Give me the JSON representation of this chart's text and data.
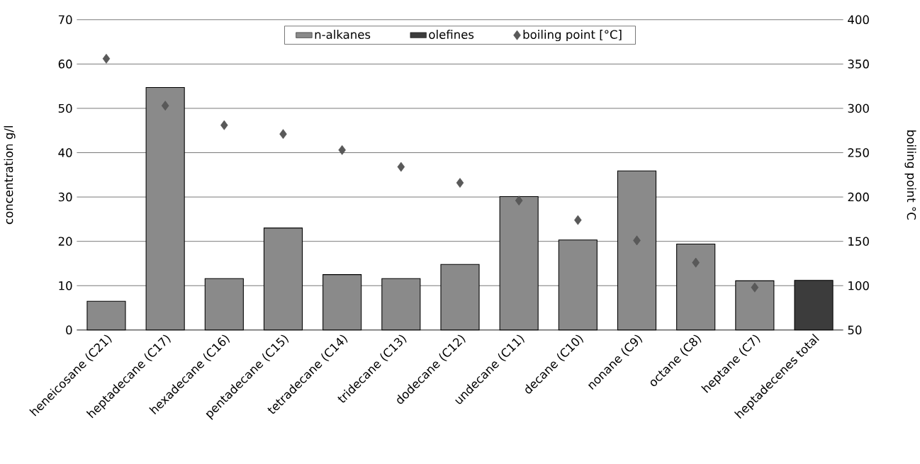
{
  "chart_data": {
    "type": "bar",
    "ylabel": "concentration g/l",
    "y2label": "boiling point °C",
    "categories": [
      "heneicosane (C21)",
      "heptadecane (C17)",
      "hexadecane (C16)",
      "pentadecane (C15)",
      "tetradecane (C14)",
      "tridecane (C13)",
      "dodecane (C12)",
      "undecane (C11)",
      "decane (C10)",
      "nonane (C9)",
      "octane (C8)",
      "heptane (C7)",
      "heptadecenes total"
    ],
    "series": [
      {
        "name": "n-alkanes",
        "color": "#8a8a8a",
        "values": [
          6.5,
          54.7,
          11.6,
          23,
          12.5,
          11.6,
          14.8,
          30.1,
          20.3,
          35.9,
          19.4,
          11.1,
          null
        ]
      },
      {
        "name": "olefines",
        "color": "#3c3c3c",
        "values": [
          null,
          null,
          null,
          null,
          null,
          null,
          null,
          null,
          null,
          null,
          null,
          null,
          11.2
        ]
      },
      {
        "name": "boiling point [°C]",
        "type": "scatter",
        "axis": "y2",
        "marker": "diamond",
        "color": "#595959",
        "values": [
          356,
          303,
          281,
          271,
          253,
          234,
          216,
          196,
          174,
          151,
          126,
          98,
          null
        ]
      }
    ],
    "ylim": [
      0,
      70
    ],
    "yticks": [
      0,
      10,
      20,
      30,
      40,
      50,
      60,
      70
    ],
    "y2lim": [
      50,
      400
    ],
    "y2ticks": [
      50,
      100,
      150,
      200,
      250,
      300,
      350,
      400
    ],
    "grid": "y",
    "legend": "top"
  }
}
